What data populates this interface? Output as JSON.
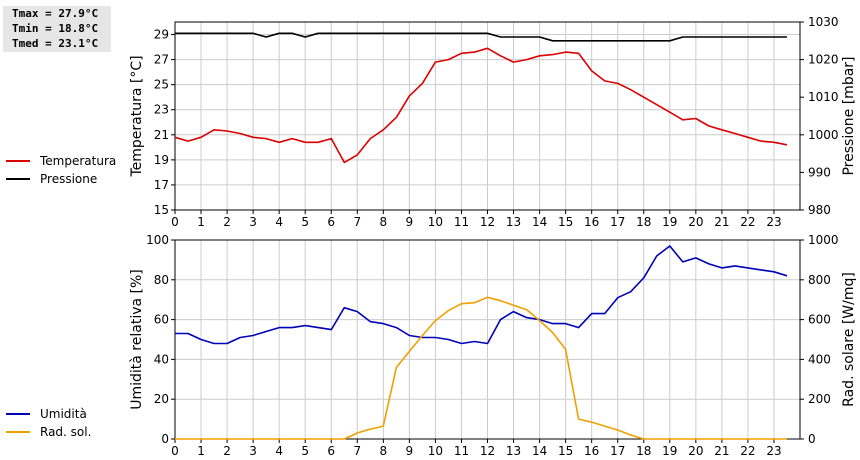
{
  "stats": {
    "tmax": "Tmax = 27.9°C",
    "tmin": "Tmin = 18.8°C",
    "tmed": "Tmed = 23.1°C"
  },
  "chart_data": [
    {
      "type": "line",
      "xlabel": "",
      "xlim": [
        0,
        24
      ],
      "xticks": [
        0,
        1,
        2,
        3,
        4,
        5,
        6,
        7,
        8,
        9,
        10,
        11,
        12,
        13,
        14,
        15,
        16,
        17,
        18,
        19,
        20,
        21,
        22,
        23
      ],
      "ylabel_left": "Temperatura [°C]",
      "ylim_left": [
        15,
        30
      ],
      "yticks_left": [
        15,
        17,
        19,
        21,
        23,
        25,
        27,
        29
      ],
      "ylabel_right": "Pressione [mbar]",
      "ylim_right": [
        980,
        1030
      ],
      "yticks_right": [
        980,
        990,
        1000,
        1010,
        1020,
        1030
      ],
      "grid": true,
      "legend_position": "left",
      "series": [
        {
          "name": "Temperatura",
          "color": "#dd0000",
          "axis": "left",
          "x": [
            0,
            0.5,
            1,
            1.5,
            2,
            2.5,
            3,
            3.5,
            4,
            4.5,
            5,
            5.5,
            6,
            6.5,
            7,
            7.5,
            8,
            8.5,
            9,
            9.5,
            10,
            10.5,
            11,
            11.5,
            12,
            12.5,
            13,
            13.5,
            14,
            14.5,
            15,
            15.5,
            16,
            16.5,
            17,
            17.5,
            18,
            18.5,
            19,
            19.5,
            20,
            20.5,
            21,
            21.5,
            22,
            22.5,
            23,
            23.5
          ],
          "values": [
            20.8,
            20.5,
            20.8,
            21.4,
            21.3,
            21.1,
            20.8,
            20.7,
            20.4,
            20.7,
            20.4,
            20.4,
            20.7,
            18.8,
            19.4,
            20.7,
            21.4,
            22.4,
            24.1,
            25.1,
            26.8,
            27.0,
            27.5,
            27.6,
            27.9,
            27.3,
            26.8,
            27.0,
            27.3,
            27.4,
            27.6,
            27.5,
            26.1,
            25.3,
            25.1,
            24.6,
            24.0,
            23.4,
            22.8,
            22.2,
            22.3,
            21.7,
            21.4,
            21.1,
            20.8,
            20.5,
            20.4,
            20.2
          ]
        },
        {
          "name": "Pressione",
          "color": "#000000",
          "axis": "right",
          "x": [
            0,
            0.5,
            1,
            1.5,
            2,
            2.5,
            3,
            3.5,
            4,
            4.5,
            5,
            5.5,
            6,
            6.5,
            7,
            7.5,
            8,
            8.5,
            9,
            9.5,
            10,
            10.5,
            11,
            11.5,
            12,
            12.5,
            13,
            13.5,
            14,
            14.5,
            15,
            15.5,
            16,
            16.5,
            17,
            17.5,
            18,
            18.5,
            19,
            19.5,
            20,
            20.5,
            21,
            21.5,
            22,
            22.5,
            23,
            23.5
          ],
          "values": [
            1027,
            1027,
            1027,
            1027,
            1027,
            1027,
            1027,
            1026,
            1027,
            1027,
            1026,
            1027,
            1027,
            1027,
            1027,
            1027,
            1027,
            1027,
            1027,
            1027,
            1027,
            1027,
            1027,
            1027,
            1027,
            1026,
            1026,
            1026,
            1026,
            1025,
            1025,
            1025,
            1025,
            1025,
            1025,
            1025,
            1025,
            1025,
            1025,
            1026,
            1026,
            1026,
            1026,
            1026,
            1026,
            1026,
            1026,
            1026
          ]
        }
      ]
    },
    {
      "type": "line",
      "xlabel": "",
      "xlim": [
        0,
        24
      ],
      "xticks": [
        0,
        1,
        2,
        3,
        4,
        5,
        6,
        7,
        8,
        9,
        10,
        11,
        12,
        13,
        14,
        15,
        16,
        17,
        18,
        19,
        20,
        21,
        22,
        23
      ],
      "ylabel_left": "Umidità relativa [%]",
      "ylim_left": [
        0,
        100
      ],
      "yticks_left": [
        0,
        20,
        40,
        60,
        80,
        100
      ],
      "ylabel_right": "Rad. solare [W/mq]",
      "ylim_right": [
        0,
        1000
      ],
      "yticks_right": [
        0,
        200,
        400,
        600,
        800,
        1000
      ],
      "grid": true,
      "legend_position": "left",
      "series": [
        {
          "name": "Umidità",
          "color": "#0000bb",
          "axis": "left",
          "x": [
            0,
            0.5,
            1,
            1.5,
            2,
            2.5,
            3,
            3.5,
            4,
            4.5,
            5,
            5.5,
            6,
            6.5,
            7,
            7.5,
            8,
            8.5,
            9,
            9.5,
            10,
            10.5,
            11,
            11.5,
            12,
            12.5,
            13,
            13.5,
            14,
            14.5,
            15,
            15.5,
            16,
            16.5,
            17,
            17.5,
            18,
            18.5,
            19,
            19.5,
            20,
            20.5,
            21,
            21.5,
            22,
            22.5,
            23,
            23.5
          ],
          "values": [
            53,
            53,
            50,
            48,
            48,
            51,
            52,
            54,
            56,
            56,
            57,
            56,
            55,
            66,
            64,
            59,
            58,
            56,
            52,
            51,
            51,
            50,
            48,
            49,
            48,
            60,
            64,
            61,
            60,
            58,
            58,
            56,
            63,
            63,
            71,
            74,
            81,
            92,
            97,
            89,
            91,
            88,
            86,
            87,
            86,
            85,
            84,
            82
          ]
        },
        {
          "name": "Rad. sol.",
          "color": "#f0a000",
          "axis": "right",
          "x": [
            0,
            0.5,
            1,
            1.5,
            2,
            2.5,
            3,
            3.5,
            4,
            4.5,
            5,
            5.5,
            6,
            6.5,
            7,
            7.5,
            8,
            8.5,
            9,
            9.5,
            10,
            10.5,
            11,
            11.5,
            12,
            12.5,
            13,
            13.5,
            14,
            14.5,
            15,
            15.5,
            16,
            16.5,
            17,
            17.5,
            18,
            18.5,
            19,
            19.5,
            20,
            20.5,
            21,
            21.5,
            22,
            22.5,
            23,
            23.5
          ],
          "values": [
            0,
            0,
            0,
            0,
            0,
            0,
            0,
            0,
            0,
            0,
            0,
            0,
            0,
            0,
            30,
            50,
            65,
            360,
            440,
            520,
            595,
            645,
            680,
            685,
            712,
            695,
            672,
            650,
            595,
            535,
            450,
            100,
            85,
            65,
            45,
            20,
            0,
            0,
            0,
            0,
            0,
            0,
            0,
            0,
            0,
            0,
            0,
            0
          ]
        }
      ]
    }
  ]
}
